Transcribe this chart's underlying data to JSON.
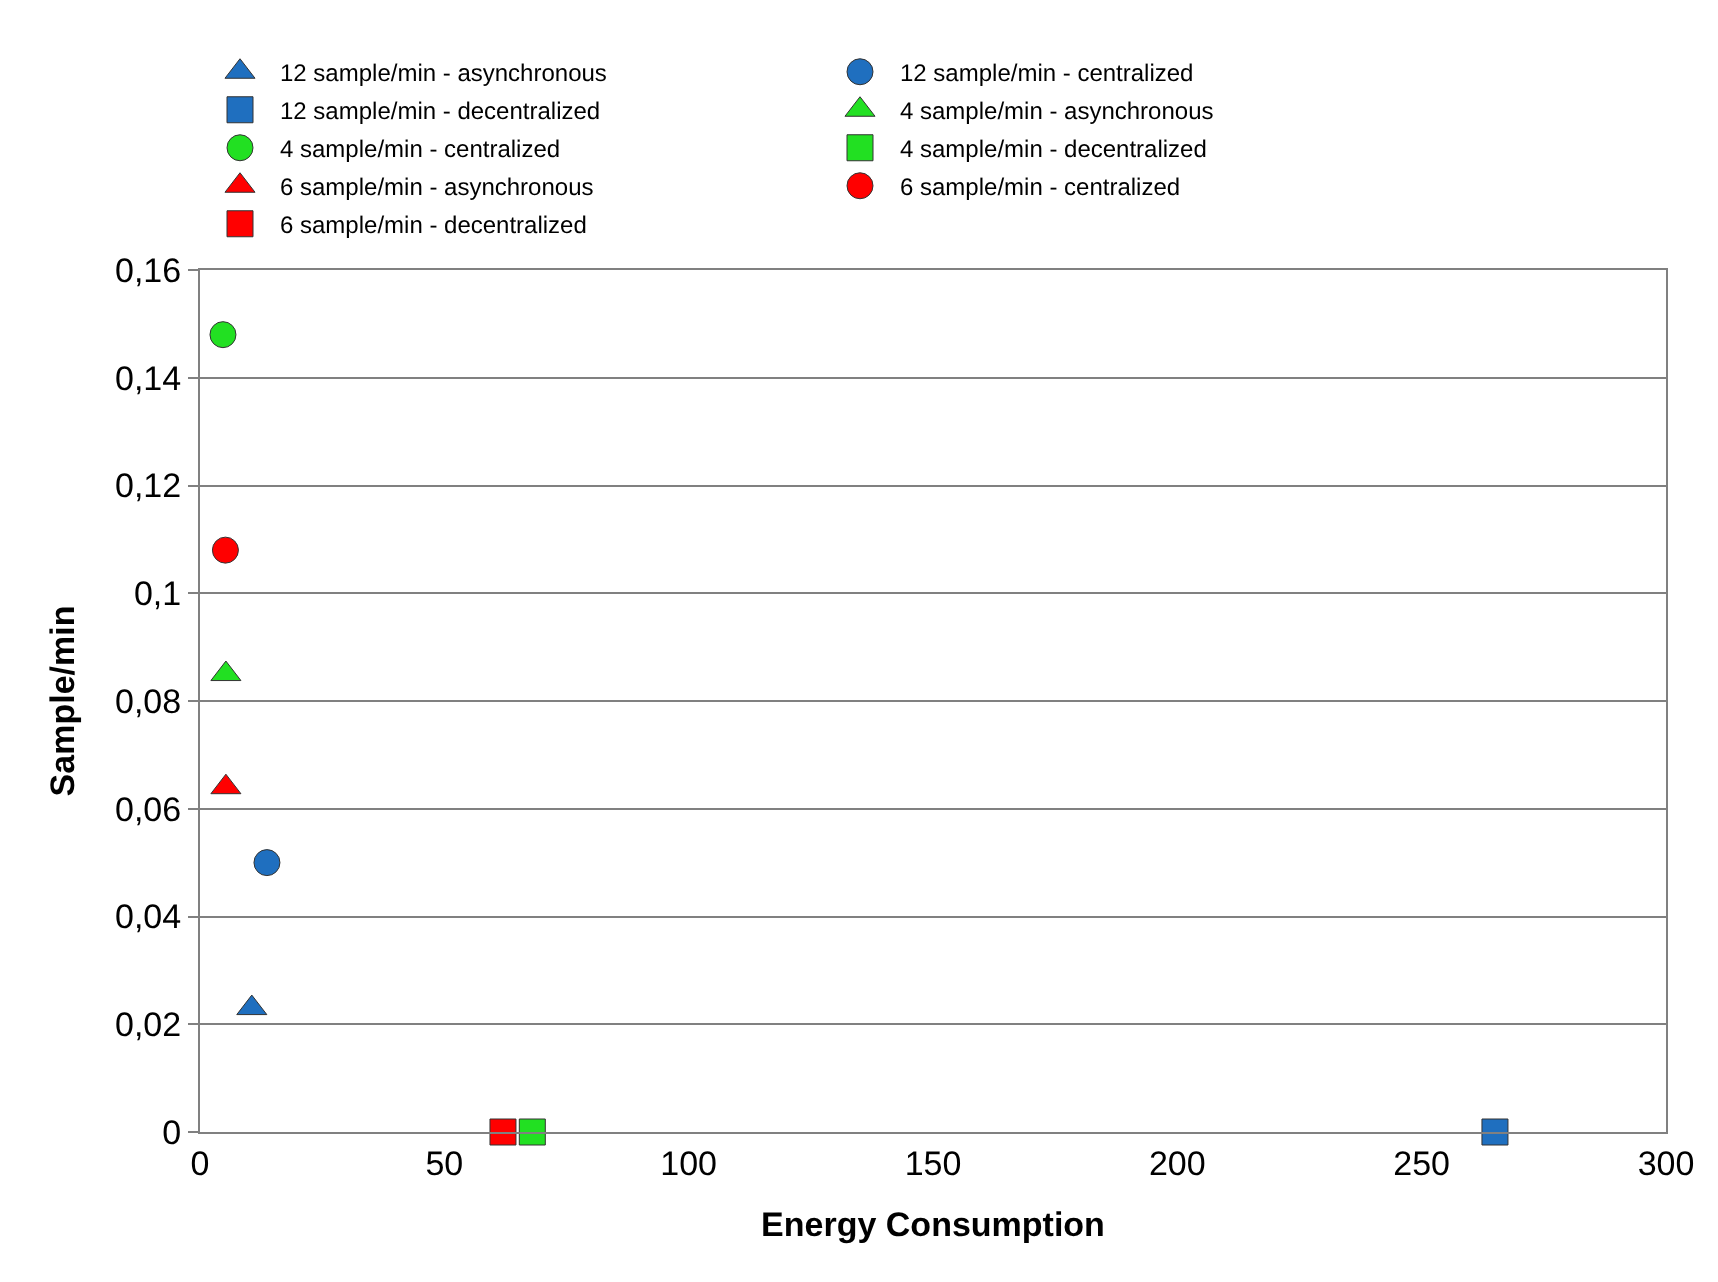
{
  "chart_data": {
    "type": "scatter",
    "xlabel": "Energy Consumption",
    "ylabel": "Sample/min",
    "xlim": [
      0,
      300
    ],
    "xticks": [
      0,
      50,
      100,
      150,
      200,
      250,
      300
    ],
    "ylim": [
      0,
      0.16
    ],
    "yticks": [
      {
        "value": 0,
        "label": "0"
      },
      {
        "value": 0.02,
        "label": "0,02"
      },
      {
        "value": 0.04,
        "label": "0,04"
      },
      {
        "value": 0.06,
        "label": "0,06"
      },
      {
        "value": 0.08,
        "label": "0,08"
      },
      {
        "value": 0.1,
        "label": "0,1"
      },
      {
        "value": 0.12,
        "label": "0,12"
      },
      {
        "value": 0.14,
        "label": "0,14"
      },
      {
        "value": 0.16,
        "label": "0,16"
      }
    ],
    "grid": "y",
    "legend": "top",
    "series": [
      {
        "name": "12 sample/min - asynchronous",
        "color": "#1f6fbf",
        "marker": "triangle",
        "x": [
          10.6
        ],
        "values": [
          0.023
        ]
      },
      {
        "name": "12 sample/min - centralized",
        "color": "#1f6fbf",
        "marker": "circle",
        "x": [
          13.7
        ],
        "values": [
          0.05
        ]
      },
      {
        "name": "12 sample/min - decentralized",
        "color": "#1f6fbf",
        "marker": "square",
        "x": [
          265
        ],
        "values": [
          0
        ]
      },
      {
        "name": "4 sample/min - asynchronous",
        "color": "#22e022",
        "marker": "triangle",
        "x": [
          5.3
        ],
        "values": [
          0.085
        ]
      },
      {
        "name": "4 sample/min - centralized",
        "color": "#22e022",
        "marker": "circle",
        "x": [
          4.7
        ],
        "values": [
          0.148
        ]
      },
      {
        "name": "4 sample/min - decentralized",
        "color": "#22e022",
        "marker": "square",
        "x": [
          68
        ],
        "values": [
          0
        ]
      },
      {
        "name": "6 sample/min - asynchronous",
        "color": "#ff0000",
        "marker": "triangle",
        "x": [
          5.3
        ],
        "values": [
          0.064
        ]
      },
      {
        "name": "6 sample/min - centralized",
        "color": "#ff0000",
        "marker": "circle",
        "x": [
          5.2
        ],
        "values": [
          0.108
        ]
      },
      {
        "name": "6 sample/min - decentralized",
        "color": "#ff0000",
        "marker": "square",
        "x": [
          62
        ],
        "values": [
          0
        ]
      }
    ]
  }
}
